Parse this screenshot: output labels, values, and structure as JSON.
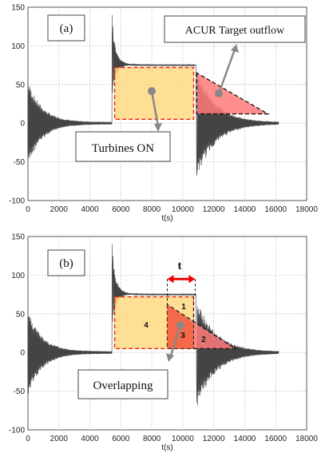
{
  "chart_data": [
    {
      "type": "line",
      "panel_label": "(a)",
      "xlabel": "t(s)",
      "ylabel": "",
      "xlim": [
        0,
        18000
      ],
      "ylim": [
        -100,
        150
      ],
      "x_ticks": [
        0,
        2000,
        4000,
        6000,
        8000,
        10000,
        12000,
        14000,
        16000,
        18000
      ],
      "y_ticks": [
        -100,
        -50,
        0,
        50,
        100,
        150
      ],
      "grid": true,
      "series_description": "Oscillating flow signal: decaying oscillation 0–5400 s, spike to ~140 at ~5450 s settling near 75, sharp drop near 10900 s followed by decaying oscillation to ~16200 s",
      "oscillation_events": [
        {
          "t_start": 0,
          "t_end": 5400,
          "amplitude": 55,
          "baseline": 0
        },
        {
          "t_start": 5450,
          "t_end": 10850,
          "peak": 140,
          "plateau": 75
        },
        {
          "t_start": 10900,
          "t_end": 16200,
          "amplitude": 70,
          "baseline": 0
        }
      ],
      "annotations": [
        {
          "text": "Turbines ON",
          "shape": "rectangle",
          "color": "#ffd980",
          "t_start": 5600,
          "t_end": 10700,
          "y_bottom": 5,
          "y_top": 72
        },
        {
          "text": "ACUR Target outflow",
          "shape": "triangle",
          "color": "#ff7b7b",
          "t_start": 10900,
          "t_end": 15500,
          "y_bottom": 12,
          "y_top": 65
        }
      ]
    },
    {
      "type": "line",
      "panel_label": "(b)",
      "xlabel": "t(s)",
      "ylabel": "",
      "xlim": [
        0,
        18000
      ],
      "ylim": [
        -100,
        150
      ],
      "x_ticks": [
        0,
        2000,
        4000,
        6000,
        8000,
        10000,
        12000,
        14000,
        16000,
        18000
      ],
      "y_ticks": [
        -100,
        -50,
        0,
        50,
        100,
        150
      ],
      "grid": true,
      "annotations": [
        {
          "text": "Overlapping",
          "shape": "arrow"
        },
        {
          "text": "t",
          "shape": "double-arrow",
          "t_start": 9000,
          "t_end": 10800
        },
        {
          "text": "4",
          "region": "rectangle-left",
          "color": "#ffd980"
        },
        {
          "text": "1",
          "region": "overlap-top",
          "color": "#ff7b7b"
        },
        {
          "text": "3",
          "region": "overlap-body",
          "color": "#ff7b7b"
        },
        {
          "text": "2",
          "region": "triangle-tail",
          "color": "#ff7b7b"
        }
      ]
    }
  ]
}
